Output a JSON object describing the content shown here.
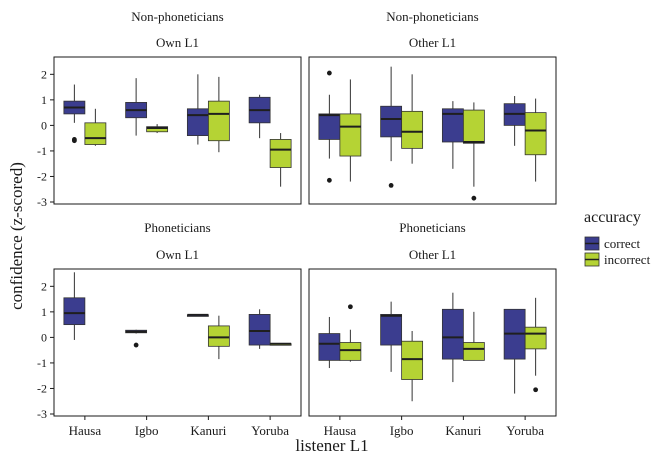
{
  "colors": {
    "correct": "#3b3d8f",
    "incorrect": "#b5d334",
    "median": "#1f1f1f",
    "frame": "#1a1a1a"
  },
  "chart_data": {
    "type": "box",
    "xlabel": "listener L1",
    "ylabel": "confidence (z-scored)",
    "ylim": [
      -3,
      2.6
    ],
    "yticks": [
      2,
      1,
      0,
      -1,
      -2,
      -3
    ],
    "ytick_labels": [
      "2",
      "1",
      "0",
      "-1",
      "-2",
      "-3"
    ],
    "categories": [
      "Hausa",
      "Igbo",
      "Kanuri",
      "Yoruba"
    ],
    "legend": {
      "title": "accuracy",
      "entries": [
        "correct",
        "incorrect"
      ],
      "placement": "right"
    },
    "panels": [
      {
        "group": "Non-phoneticians",
        "speaker": "Own L1",
        "boxes": {
          "correct": [
            {
              "min": 0.1,
              "q1": 0.45,
              "median": 0.7,
              "q3": 0.95,
              "max": 1.6,
              "outliers": [
                -0.55,
                -0.6
              ]
            },
            {
              "min": -0.4,
              "q1": 0.3,
              "median": 0.6,
              "q3": 0.9,
              "max": 1.85,
              "outliers": []
            },
            {
              "min": -0.75,
              "q1": -0.4,
              "median": 0.4,
              "q3": 0.65,
              "max": 2.0,
              "outliers": []
            },
            {
              "min": -0.5,
              "q1": 0.1,
              "median": 0.6,
              "q3": 1.1,
              "max": 1.2,
              "outliers": []
            }
          ],
          "incorrect": [
            {
              "min": -0.8,
              "q1": -0.75,
              "median": -0.5,
              "q3": 0.1,
              "max": 0.65,
              "outliers": []
            },
            {
              "min": -0.3,
              "q1": -0.25,
              "median": -0.1,
              "q3": -0.05,
              "max": 0.05,
              "outliers": []
            },
            {
              "min": -1.05,
              "q1": -0.6,
              "median": 0.45,
              "q3": 0.95,
              "max": 1.9,
              "outliers": []
            },
            {
              "min": -2.4,
              "q1": -1.65,
              "median": -0.95,
              "q3": -0.55,
              "max": -0.3,
              "outliers": []
            }
          ]
        }
      },
      {
        "group": "Non-phoneticians",
        "speaker": "Other L1",
        "boxes": {
          "correct": [
            {
              "min": -1.3,
              "q1": -0.55,
              "median": 0.4,
              "q3": 0.45,
              "max": 1.2,
              "outliers": [
                2.05,
                -2.15
              ]
            },
            {
              "min": -1.4,
              "q1": -0.45,
              "median": 0.25,
              "q3": 0.75,
              "max": 2.3,
              "outliers": [
                -2.35
              ]
            },
            {
              "min": -1.7,
              "q1": -0.65,
              "median": 0.45,
              "q3": 0.65,
              "max": 0.95,
              "outliers": []
            },
            {
              "min": -0.8,
              "q1": 0.0,
              "median": 0.45,
              "q3": 0.85,
              "max": 1.15,
              "outliers": []
            }
          ],
          "incorrect": [
            {
              "min": -2.2,
              "q1": -1.2,
              "median": -0.05,
              "q3": 0.45,
              "max": 1.8,
              "outliers": []
            },
            {
              "min": -1.5,
              "q1": -0.9,
              "median": -0.25,
              "q3": 0.55,
              "max": 2.0,
              "outliers": []
            },
            {
              "min": -2.4,
              "q1": -0.7,
              "median": -0.65,
              "q3": 0.6,
              "max": 0.9,
              "outliers": [
                -2.85
              ]
            },
            {
              "min": -2.2,
              "q1": -1.15,
              "median": -0.2,
              "q3": 0.5,
              "max": 1.05,
              "outliers": []
            }
          ]
        }
      },
      {
        "group": "Phoneticians",
        "speaker": "Own L1",
        "boxes": {
          "correct": [
            {
              "min": -0.1,
              "q1": 0.5,
              "median": 0.95,
              "q3": 1.55,
              "max": 2.55,
              "outliers": []
            },
            {
              "min": 0.15,
              "q1": 0.18,
              "median": 0.22,
              "q3": 0.28,
              "max": 0.3,
              "outliers": [
                -0.3
              ]
            },
            {
              "min": 0.88,
              "q1": 0.88,
              "median": 0.88,
              "q3": 0.88,
              "max": 0.88,
              "outliers": []
            },
            {
              "min": -0.45,
              "q1": -0.3,
              "median": 0.25,
              "q3": 0.9,
              "max": 1.1,
              "outliers": []
            }
          ],
          "incorrect": [
            null,
            null,
            {
              "min": -0.85,
              "q1": -0.35,
              "median": 0.0,
              "q3": 0.45,
              "max": 0.85,
              "outliers": []
            },
            {
              "min": -0.25,
              "q1": -0.25,
              "median": -0.25,
              "q3": -0.25,
              "max": -0.25,
              "outliers": []
            }
          ]
        }
      },
      {
        "group": "Phoneticians",
        "speaker": "Other L1",
        "boxes": {
          "correct": [
            {
              "min": -1.2,
              "q1": -0.9,
              "median": -0.25,
              "q3": 0.15,
              "max": 0.8,
              "outliers": []
            },
            {
              "min": -1.35,
              "q1": -0.3,
              "median": 0.85,
              "q3": 0.9,
              "max": 1.4,
              "outliers": []
            },
            {
              "min": -1.75,
              "q1": -0.85,
              "median": 0.0,
              "q3": 1.1,
              "max": 1.75,
              "outliers": []
            },
            {
              "min": -2.2,
              "q1": -0.85,
              "median": 0.15,
              "q3": 1.1,
              "max": 1.1,
              "outliers": []
            }
          ],
          "incorrect": [
            {
              "min": -0.95,
              "q1": -0.9,
              "median": -0.5,
              "q3": -0.2,
              "max": 0.3,
              "outliers": [
                1.2
              ]
            },
            {
              "min": -2.5,
              "q1": -1.65,
              "median": -0.85,
              "q3": -0.15,
              "max": 0.25,
              "outliers": []
            },
            {
              "min": -0.9,
              "q1": -0.9,
              "median": -0.45,
              "q3": -0.2,
              "max": 1.0,
              "outliers": []
            },
            {
              "min": -1.5,
              "q1": -0.45,
              "median": 0.15,
              "q3": 0.4,
              "max": 1.55,
              "outliers": [
                -2.05
              ]
            }
          ]
        }
      }
    ]
  }
}
